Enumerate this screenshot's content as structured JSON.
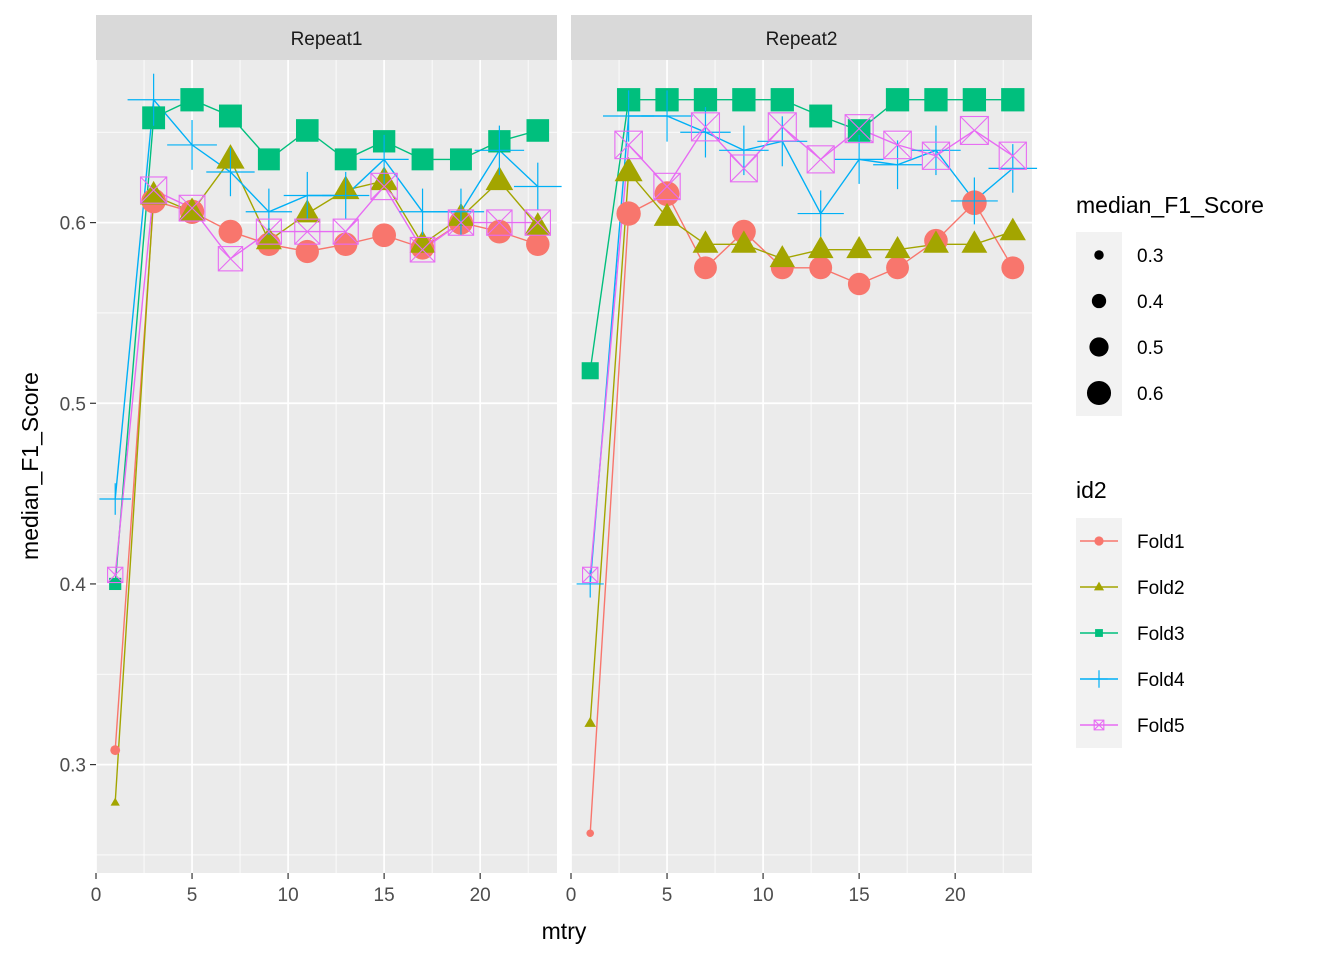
{
  "chart_data": {
    "type": "line",
    "xlabel": "mtry",
    "ylabel": "median_F1_Score",
    "xlim": [
      0,
      24
    ],
    "ylim": [
      0.24,
      0.69
    ],
    "x_ticks": [
      0,
      5,
      10,
      15,
      20
    ],
    "y_ticks": [
      0.3,
      0.4,
      0.5,
      0.6
    ],
    "grid": true,
    "legend_position": "right",
    "x": [
      1,
      3,
      5,
      7,
      9,
      11,
      13,
      15,
      17,
      19,
      21,
      23
    ],
    "size_legend": {
      "title": "median_F1_Score",
      "entries": [
        "0.3",
        "0.4",
        "0.5",
        "0.6"
      ],
      "values": [
        0.3,
        0.4,
        0.5,
        0.6
      ]
    },
    "color_legend": {
      "title": "id2",
      "entries": [
        "Fold1",
        "Fold2",
        "Fold3",
        "Fold4",
        "Fold5"
      ]
    },
    "series_style": [
      {
        "color": "#F8766D",
        "shape": "circle"
      },
      {
        "color": "#A3A500",
        "shape": "triangle"
      },
      {
        "color": "#00BF7D",
        "shape": "square"
      },
      {
        "color": "#00B0F6",
        "shape": "plus"
      },
      {
        "color": "#E76BF3",
        "shape": "boxx"
      }
    ],
    "panels": [
      {
        "label": "Repeat1",
        "series": [
          {
            "name": "Fold1",
            "values": [
              0.308,
              0.612,
              0.606,
              0.595,
              0.588,
              0.584,
              0.588,
              0.593,
              0.586,
              0.6,
              0.595,
              0.588
            ]
          },
          {
            "name": "Fold2",
            "values": [
              0.279,
              0.615,
              0.606,
              0.635,
              0.59,
              0.605,
              0.618,
              0.623,
              0.588,
              0.603,
              0.623,
              0.598
            ]
          },
          {
            "name": "Fold3",
            "values": [
              0.4,
              0.658,
              0.668,
              0.659,
              0.635,
              0.651,
              0.635,
              0.645,
              0.635,
              0.635,
              0.645,
              0.651
            ]
          },
          {
            "name": "Fold4",
            "values": [
              0.447,
              0.668,
              0.643,
              0.628,
              0.606,
              0.615,
              0.615,
              0.635,
              0.606,
              0.606,
              0.64,
              0.62
            ]
          },
          {
            "name": "Fold5",
            "values": [
              0.405,
              0.618,
              0.608,
              0.58,
              0.595,
              0.595,
              0.595,
              0.62,
              0.585,
              0.6,
              0.6,
              0.6
            ]
          }
        ]
      },
      {
        "label": "Repeat2",
        "series": [
          {
            "name": "Fold1",
            "values": [
              0.262,
              0.605,
              0.616,
              0.575,
              0.595,
              0.575,
              0.575,
              0.566,
              0.575,
              0.59,
              0.611,
              0.575
            ]
          },
          {
            "name": "Fold2",
            "values": [
              0.323,
              0.628,
              0.603,
              0.588,
              0.588,
              0.58,
              0.585,
              0.585,
              0.585,
              0.588,
              0.588,
              0.595
            ]
          },
          {
            "name": "Fold3",
            "values": [
              0.518,
              0.668,
              0.668,
              0.668,
              0.668,
              0.668,
              0.659,
              0.651,
              0.668,
              0.668,
              0.668,
              0.668
            ]
          },
          {
            "name": "Fold4",
            "values": [
              0.4,
              0.659,
              0.659,
              0.65,
              0.64,
              0.645,
              0.605,
              0.635,
              0.632,
              0.64,
              0.612,
              0.63
            ]
          },
          {
            "name": "Fold5",
            "values": [
              0.405,
              0.643,
              0.62,
              0.653,
              0.63,
              0.653,
              0.635,
              0.652,
              0.643,
              0.637,
              0.651,
              0.637
            ]
          }
        ]
      }
    ]
  }
}
